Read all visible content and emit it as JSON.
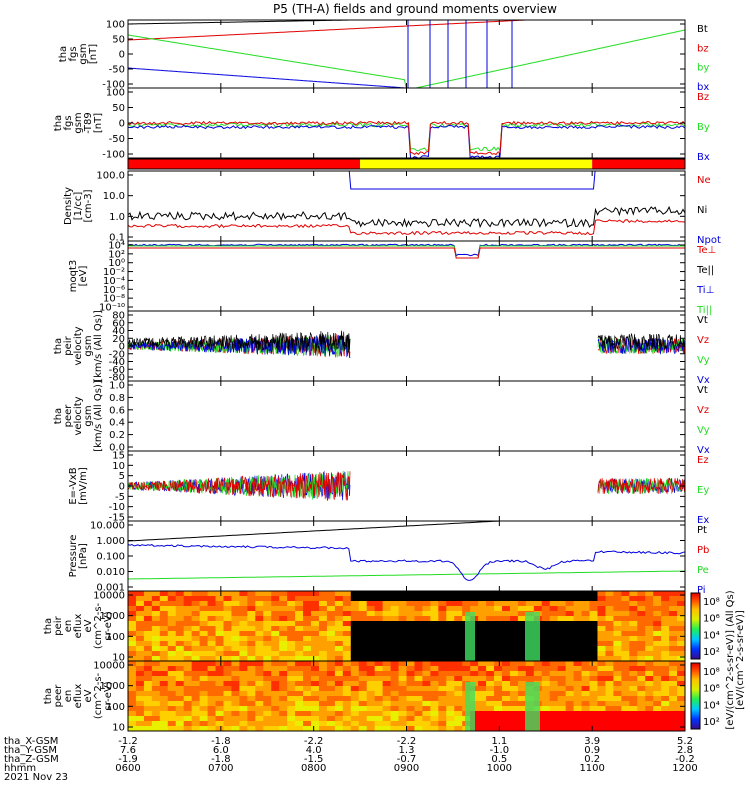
{
  "title": "P5 (TH-A) fields and ground moments overview",
  "footer": {
    "row_labels": [
      "tha_X-GSM",
      "tha_Y-GSM",
      "tha_Z-GSM",
      "hhmm",
      "2021 Nov 23"
    ],
    "columns": [
      [
        "-1.2",
        "7.6",
        "-1.9",
        "0600"
      ],
      [
        "-1.8",
        "6.0",
        "-1.8",
        "0700"
      ],
      [
        "-2.2",
        "4.0",
        "-1.5",
        "0800"
      ],
      [
        "-2.2",
        "1.3",
        "-0.7",
        "0900"
      ],
      [
        "1.1",
        "-1.0",
        "0.5",
        "1000"
      ],
      [
        "3.9",
        "0.9",
        "0.2",
        "1100"
      ],
      [
        "5.2",
        "2.8",
        "-0.2",
        "1200"
      ]
    ]
  },
  "colors": {
    "black": "#000000",
    "red": "#e00000",
    "green": "#22dd22",
    "blue": "#0000dd",
    "yellow": "#ffff00",
    "bar_red": "#ff0000"
  },
  "chart_data": [
    {
      "type": "line",
      "ylabel": [
        "tha",
        "fgs",
        "gsm",
        "[nT]"
      ],
      "ylim": [
        -100,
        100
      ],
      "yticks": [
        "100",
        "50",
        "0",
        "-50",
        "-100"
      ],
      "legend": [
        "Bt",
        "bz",
        "by",
        "bx"
      ]
    },
    {
      "type": "line",
      "ylabel": [
        "tha",
        "fgs",
        "gsm",
        "-T89",
        "[nT]"
      ],
      "ylim": [
        -120,
        120
      ],
      "yticks": [
        "100",
        "50",
        "0",
        "-50",
        "-100"
      ],
      "legend": [
        "Bz",
        "By",
        "Bx"
      ]
    },
    {
      "type": "bar",
      "description_series": [
        "red",
        "yellow",
        "red"
      ],
      "segments": [
        {
          "start": "0600",
          "end": "0830",
          "color": "red"
        },
        {
          "start": "0830",
          "end": "1100",
          "color": "yellow"
        },
        {
          "start": "1100",
          "end": "1200",
          "color": "red"
        }
      ]
    },
    {
      "type": "line",
      "ylabel": [
        "Density",
        "[1/cc]",
        "[cm-3]"
      ],
      "yscale": "log",
      "yticks": [
        "100.0",
        "10.0",
        "1.0",
        "0.1"
      ],
      "legend": [
        "Ne",
        "Ni",
        "Npot"
      ]
    },
    {
      "type": "line",
      "ylabel": [
        "moqt3",
        "[eV]"
      ],
      "yscale": "log",
      "yticks": [
        "10⁴",
        "10²",
        "10⁰",
        "10⁻²",
        "10⁻⁴",
        "10⁻⁶",
        "10⁻⁸",
        "10⁻¹⁰"
      ],
      "legend": [
        "Te⊥",
        "Te||",
        "Ti⊥",
        "Ti||"
      ]
    },
    {
      "type": "line",
      "ylabel": [
        "tha",
        "peir",
        "velocity",
        "gsm",
        "[km/s (All Qs)]"
      ],
      "ylim": [
        -80,
        80
      ],
      "yticks": [
        "80",
        "60",
        "40",
        "20",
        "0",
        "-20",
        "-40",
        "-60",
        "-80"
      ],
      "legend": [
        "Vt",
        "Vz",
        "Vy",
        "Vx"
      ]
    },
    {
      "type": "line",
      "ylabel": [
        "tha",
        "peer",
        "velocity",
        "gsm",
        "[km/s (All Qs)]"
      ],
      "ylim": [
        0,
        1
      ],
      "yticks": [
        "1.0",
        "0.8",
        "0.6",
        "0.4",
        "0.2",
        "0.0"
      ],
      "legend": [
        "Vt",
        "Vz",
        "Vy",
        "Vx"
      ]
    },
    {
      "type": "line",
      "ylabel": [
        "E=-VxB",
        "[mV/m]"
      ],
      "ylim": [
        -16,
        16
      ],
      "yticks": [
        "15",
        "10",
        "5",
        "0",
        "-5",
        "-10",
        "-15"
      ],
      "legend": [
        "Ez",
        "Ey",
        "Ex"
      ]
    },
    {
      "type": "line",
      "ylabel": [
        "Pressure",
        "[nPa]"
      ],
      "yscale": "log",
      "yticks": [
        "10.000",
        "1.000",
        "0.100",
        "0.010",
        "0.001"
      ],
      "legend": [
        "Pt",
        "Pb",
        "Pe",
        "Pi"
      ]
    },
    {
      "type": "heatmap",
      "ylabel": [
        "tha",
        "peir",
        "en",
        "eflux",
        "eV",
        "(cm^2-s-",
        "sr-eV)"
      ],
      "yscale": "log",
      "yticks": [
        "10000",
        "1000",
        "100",
        "10"
      ],
      "colorbar": [
        "10⁸",
        "10⁶",
        "10⁴",
        "10²"
      ],
      "colorbar_label": "[eV/(cm^2-s-sr-eV)] (All Qs)"
    },
    {
      "type": "heatmap",
      "ylabel": [
        "tha",
        "peer",
        "en",
        "eflux",
        "eV",
        "(cm^2-s-",
        "sr-eV)"
      ],
      "yscale": "log",
      "yticks": [
        "10000",
        "1000",
        "100",
        "10"
      ],
      "colorbar": [
        "10⁸",
        "10⁶",
        "10⁴",
        "10²"
      ],
      "colorbar_label": "[eV/(cm^2-s-sr-eV)]"
    }
  ]
}
